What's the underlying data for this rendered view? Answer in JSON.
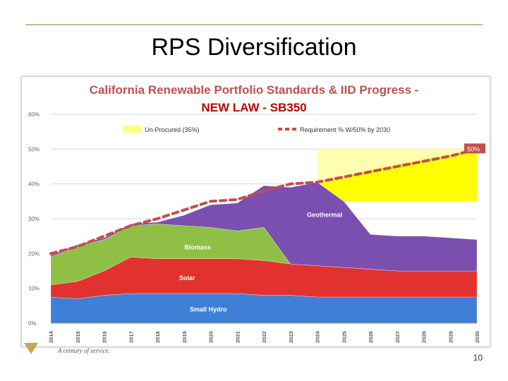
{
  "slide": {
    "title": "RPS Diversification",
    "page_number": "10",
    "logo_tagline": "A century of service."
  },
  "chart_data": {
    "type": "area",
    "title": "California Renewable Portfolio Standards & IID Progress -",
    "subtitle": "NEW LAW - SB350",
    "x": [
      "2014",
      "2015",
      "2016",
      "2017",
      "2018",
      "2019",
      "2020",
      "2021",
      "2022",
      "2023",
      "2024",
      "2025",
      "2026",
      "2027",
      "2028",
      "2029",
      "2030"
    ],
    "ylim": [
      0,
      60
    ],
    "yticks": [
      0,
      10,
      20,
      30,
      40,
      50,
      60
    ],
    "ytick_labels": [
      "0%",
      "10%",
      "20%",
      "30%",
      "40%",
      "50%",
      "60%"
    ],
    "grid": true,
    "legend_position": "top",
    "stacked_series": [
      {
        "name": "Small Hydro",
        "color": "#3f7fd6",
        "values": [
          7.5,
          7,
          8,
          8.5,
          8.5,
          8.5,
          8.5,
          8.5,
          8,
          8,
          7.5,
          7.5,
          7.5,
          7.5,
          7.5,
          7.5,
          7.5
        ]
      },
      {
        "name": "Solar",
        "color": "#e2322f",
        "values": [
          3.5,
          5,
          7,
          10.5,
          10,
          10,
          10,
          10,
          10,
          9,
          9,
          8.5,
          8,
          7.5,
          7.5,
          7.5,
          7.5
        ]
      },
      {
        "name": "Biomass",
        "color": "#8fbf44",
        "values": [
          8,
          10,
          9,
          9,
          10,
          9.5,
          9,
          8,
          9.5,
          0,
          0,
          0,
          0,
          0,
          0,
          0,
          0
        ]
      },
      {
        "name": "Geothermal",
        "color": "#7a4fb0",
        "values": [
          0.5,
          0.5,
          0.5,
          0.5,
          0.5,
          3,
          6.5,
          8,
          12,
          22,
          24,
          19,
          10,
          10,
          10,
          9.5,
          9
        ]
      }
    ],
    "shaded_bands": [
      {
        "name": "Un-Procured (35%)",
        "color": "#ffffb0",
        "from_value": 35,
        "range": [
          "2024",
          "2030"
        ]
      },
      {
        "name": "Un-Procured fill",
        "color": "#ffff00",
        "upper": [
          40,
          42,
          44,
          45.5,
          47,
          48.5,
          50
        ],
        "lower": 35,
        "range": [
          "2024",
          "2030"
        ]
      }
    ],
    "requirement_line": {
      "name": "Requirement % W/50% by 2030",
      "color": "#c0504d",
      "values": [
        20,
        22,
        25,
        28,
        30,
        32.5,
        35,
        35.5,
        38,
        40,
        40.5,
        42,
        43.5,
        45,
        46.5,
        48,
        50
      ],
      "end_label": "50%"
    },
    "annotations": [
      "Geothermal",
      "Biomass",
      "Solar",
      "Small Hydro"
    ],
    "legend": [
      "Un-Procured (35%)",
      "Requirement % W/50% by 2030"
    ]
  }
}
